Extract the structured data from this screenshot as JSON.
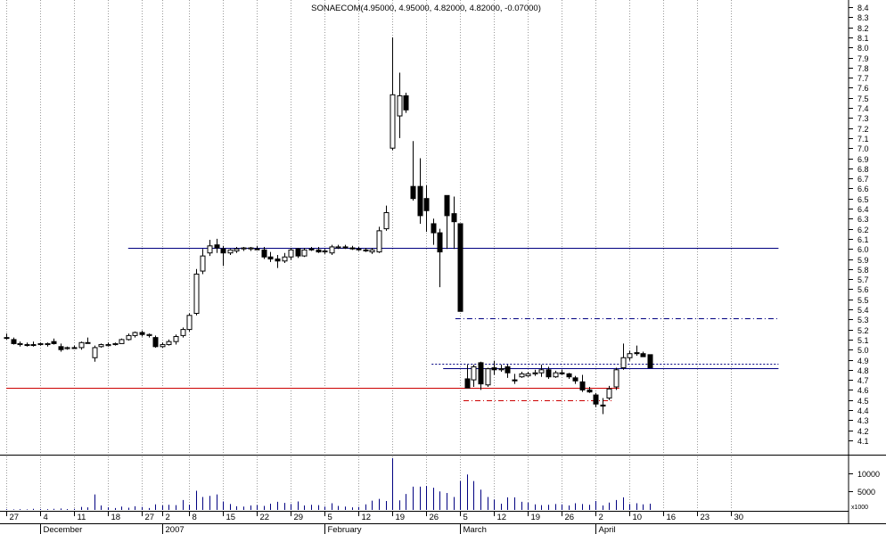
{
  "chart_data": {
    "type": "candlestick",
    "title": "SONAECOM(4.95000, 4.95000, 4.82000, 4.82000, -0.07000)",
    "ylim": [
      4.0,
      8.45
    ],
    "y_ticks": [
      "8.4",
      "8.3",
      "8.2",
      "8.1",
      "8.0",
      "7.9",
      "7.8",
      "7.7",
      "7.6",
      "7.5",
      "7.4",
      "7.3",
      "7.2",
      "7.1",
      "7.0",
      "6.9",
      "6.8",
      "6.7",
      "6.6",
      "6.5",
      "6.4",
      "6.3",
      "6.2",
      "6.1",
      "6.0",
      "5.9",
      "5.8",
      "5.7",
      "5.6",
      "5.5",
      "5.4",
      "5.3",
      "5.2",
      "5.1",
      "5.0",
      "4.9",
      "4.8",
      "4.7",
      "4.6",
      "4.5",
      "4.4",
      "4.3",
      "4.2",
      "4.1"
    ],
    "x_day_ticks": [
      {
        "label": "27",
        "i": 0
      },
      {
        "label": "4",
        "i": 5
      },
      {
        "label": "11",
        "i": 10
      },
      {
        "label": "18",
        "i": 15
      },
      {
        "label": "27",
        "i": 20
      },
      {
        "label": "2",
        "i": 23
      },
      {
        "label": "8",
        "i": 27
      },
      {
        "label": "15",
        "i": 32
      },
      {
        "label": "22",
        "i": 37
      },
      {
        "label": "29",
        "i": 42
      },
      {
        "label": "5",
        "i": 47
      },
      {
        "label": "12",
        "i": 52
      },
      {
        "label": "19",
        "i": 57
      },
      {
        "label": "26",
        "i": 62
      },
      {
        "label": "5",
        "i": 67
      },
      {
        "label": "12",
        "i": 72
      },
      {
        "label": "19",
        "i": 77
      },
      {
        "label": "26",
        "i": 82
      },
      {
        "label": "2",
        "i": 87
      },
      {
        "label": "10",
        "i": 92
      },
      {
        "label": "16",
        "i": 97
      },
      {
        "label": "23",
        "i": 102
      },
      {
        "label": "30",
        "i": 107
      }
    ],
    "x_month_labels": [
      {
        "label": "December",
        "i": 5
      },
      {
        "label": "2007",
        "i": 23
      },
      {
        "label": "February",
        "i": 47
      },
      {
        "label": "March",
        "i": 67
      },
      {
        "label": "April",
        "i": 87
      }
    ],
    "volume_ticks": [
      "10000",
      "5000"
    ],
    "volume_multiplier": "x1000",
    "vmax": 14000,
    "candles": [
      {
        "o": 5.12,
        "h": 5.16,
        "l": 5.1,
        "c": 5.12,
        "v": 200
      },
      {
        "o": 5.1,
        "h": 5.12,
        "l": 5.05,
        "c": 5.06,
        "v": 150
      },
      {
        "o": 5.05,
        "h": 5.08,
        "l": 5.03,
        "c": 5.06,
        "v": 200
      },
      {
        "o": 5.05,
        "h": 5.07,
        "l": 5.03,
        "c": 5.05,
        "v": 150
      },
      {
        "o": 5.05,
        "h": 5.08,
        "l": 5.03,
        "c": 5.05,
        "v": 300
      },
      {
        "o": 5.05,
        "h": 5.07,
        "l": 5.04,
        "c": 5.06,
        "v": 250
      },
      {
        "o": 5.05,
        "h": 5.07,
        "l": 5.03,
        "c": 5.06,
        "v": 200
      },
      {
        "o": 5.08,
        "h": 5.11,
        "l": 5.05,
        "c": 5.06,
        "v": 300
      },
      {
        "o": 5.03,
        "h": 5.06,
        "l": 4.98,
        "c": 5.0,
        "v": 400
      },
      {
        "o": 5.01,
        "h": 5.03,
        "l": 5.0,
        "c": 5.02,
        "v": 250
      },
      {
        "o": 5.02,
        "h": 5.04,
        "l": 5.01,
        "c": 5.02,
        "v": 300
      },
      {
        "o": 5.02,
        "h": 5.08,
        "l": 5.0,
        "c": 5.07,
        "v": 800
      },
      {
        "o": 5.07,
        "h": 5.12,
        "l": 5.06,
        "c": 5.07,
        "v": 700
      },
      {
        "o": 4.92,
        "h": 5.04,
        "l": 4.88,
        "c": 5.02,
        "v": 4200
      },
      {
        "o": 5.03,
        "h": 5.06,
        "l": 5.02,
        "c": 5.05,
        "v": 1200
      },
      {
        "o": 5.04,
        "h": 5.07,
        "l": 5.03,
        "c": 5.05,
        "v": 700
      },
      {
        "o": 5.05,
        "h": 5.07,
        "l": 5.04,
        "c": 5.06,
        "v": 500
      },
      {
        "o": 5.06,
        "h": 5.11,
        "l": 5.06,
        "c": 5.1,
        "v": 900
      },
      {
        "o": 5.1,
        "h": 5.16,
        "l": 5.09,
        "c": 5.14,
        "v": 600
      },
      {
        "o": 5.14,
        "h": 5.18,
        "l": 5.12,
        "c": 5.17,
        "v": 1000
      },
      {
        "o": 5.17,
        "h": 5.19,
        "l": 5.13,
        "c": 5.15,
        "v": 800
      },
      {
        "o": 5.14,
        "h": 5.16,
        "l": 5.12,
        "c": 5.15,
        "v": 500
      },
      {
        "o": 5.12,
        "h": 5.14,
        "l": 5.02,
        "c": 5.03,
        "v": 1500
      },
      {
        "o": 5.03,
        "h": 5.07,
        "l": 5.02,
        "c": 5.05,
        "v": 1200
      },
      {
        "o": 5.05,
        "h": 5.1,
        "l": 5.04,
        "c": 5.08,
        "v": 1400
      },
      {
        "o": 5.08,
        "h": 5.15,
        "l": 5.05,
        "c": 5.13,
        "v": 1300
      },
      {
        "o": 5.14,
        "h": 5.22,
        "l": 5.12,
        "c": 5.2,
        "v": 2700
      },
      {
        "o": 5.2,
        "h": 5.36,
        "l": 5.18,
        "c": 5.34,
        "v": 1400
      },
      {
        "o": 5.36,
        "h": 5.8,
        "l": 5.34,
        "c": 5.75,
        "v": 5200
      },
      {
        "o": 5.78,
        "h": 6.0,
        "l": 5.75,
        "c": 5.93,
        "v": 3500
      },
      {
        "o": 5.96,
        "h": 6.09,
        "l": 5.93,
        "c": 6.03,
        "v": 3800
      },
      {
        "o": 6.04,
        "h": 6.1,
        "l": 5.96,
        "c": 6.01,
        "v": 4200
      },
      {
        "o": 6.0,
        "h": 6.03,
        "l": 5.83,
        "c": 5.96,
        "v": 2300
      },
      {
        "o": 5.96,
        "h": 6.0,
        "l": 5.94,
        "c": 5.99,
        "v": 1600
      },
      {
        "o": 5.98,
        "h": 6.02,
        "l": 5.96,
        "c": 6.0,
        "v": 1000
      },
      {
        "o": 6.0,
        "h": 6.02,
        "l": 5.98,
        "c": 6.01,
        "v": 900
      },
      {
        "o": 6.0,
        "h": 6.02,
        "l": 5.98,
        "c": 6.01,
        "v": 1200
      },
      {
        "o": 6.0,
        "h": 6.03,
        "l": 5.99,
        "c": 6.0,
        "v": 1300
      },
      {
        "o": 5.99,
        "h": 6.02,
        "l": 5.9,
        "c": 5.92,
        "v": 1100
      },
      {
        "o": 5.92,
        "h": 5.97,
        "l": 5.87,
        "c": 5.9,
        "v": 1700
      },
      {
        "o": 5.9,
        "h": 5.94,
        "l": 5.81,
        "c": 5.88,
        "v": 2200
      },
      {
        "o": 5.88,
        "h": 5.96,
        "l": 5.86,
        "c": 5.92,
        "v": 1900
      },
      {
        "o": 5.92,
        "h": 6.01,
        "l": 5.89,
        "c": 5.99,
        "v": 1600
      },
      {
        "o": 6.0,
        "h": 6.01,
        "l": 5.91,
        "c": 5.93,
        "v": 2300
      },
      {
        "o": 5.93,
        "h": 6.01,
        "l": 5.92,
        "c": 5.99,
        "v": 1200
      },
      {
        "o": 6.0,
        "h": 6.02,
        "l": 5.98,
        "c": 5.99,
        "v": 1400
      },
      {
        "o": 5.99,
        "h": 6.02,
        "l": 5.96,
        "c": 5.97,
        "v": 1300
      },
      {
        "o": 5.97,
        "h": 6.0,
        "l": 5.95,
        "c": 5.98,
        "v": 900
      },
      {
        "o": 5.96,
        "h": 6.04,
        "l": 5.94,
        "c": 6.02,
        "v": 1800
      },
      {
        "o": 6.01,
        "h": 6.04,
        "l": 6.0,
        "c": 6.02,
        "v": 1100
      },
      {
        "o": 6.02,
        "h": 6.04,
        "l": 6.0,
        "c": 6.01,
        "v": 900
      },
      {
        "o": 6.01,
        "h": 6.03,
        "l": 5.99,
        "c": 6.0,
        "v": 700
      },
      {
        "o": 6.0,
        "h": 6.02,
        "l": 5.98,
        "c": 6.0,
        "v": 800
      },
      {
        "o": 5.99,
        "h": 6.01,
        "l": 5.97,
        "c": 5.98,
        "v": 1500
      },
      {
        "o": 5.97,
        "h": 6.01,
        "l": 5.95,
        "c": 5.99,
        "v": 2500
      },
      {
        "o": 5.97,
        "h": 6.22,
        "l": 5.96,
        "c": 6.18,
        "v": 3000
      },
      {
        "o": 6.2,
        "h": 6.43,
        "l": 6.18,
        "c": 6.36,
        "v": 2400
      },
      {
        "o": 7.0,
        "h": 8.1,
        "l": 6.98,
        "c": 7.53,
        "v": 14000
      },
      {
        "o": 7.32,
        "h": 7.75,
        "l": 7.1,
        "c": 7.52,
        "v": 2600
      },
      {
        "o": 7.52,
        "h": 7.55,
        "l": 7.35,
        "c": 7.38,
        "v": 4300
      },
      {
        "o": 6.62,
        "h": 7.07,
        "l": 6.48,
        "c": 6.5,
        "v": 6300
      },
      {
        "o": 6.62,
        "h": 6.9,
        "l": 6.25,
        "c": 6.33,
        "v": 6300
      },
      {
        "o": 6.5,
        "h": 6.63,
        "l": 6.17,
        "c": 6.38,
        "v": 6500
      },
      {
        "o": 6.25,
        "h": 6.3,
        "l": 6.04,
        "c": 6.16,
        "v": 6000
      },
      {
        "o": 6.16,
        "h": 6.2,
        "l": 5.62,
        "c": 5.97,
        "v": 5000
      },
      {
        "o": 6.53,
        "h": 6.53,
        "l": 6.0,
        "c": 6.33,
        "v": 4600
      },
      {
        "o": 6.35,
        "h": 6.52,
        "l": 6.0,
        "c": 6.27,
        "v": 3500
      },
      {
        "o": 6.25,
        "h": 6.25,
        "l": 5.38,
        "c": 5.38,
        "v": 7800
      },
      {
        "o": 4.71,
        "h": 4.85,
        "l": 4.63,
        "c": 4.62,
        "v": 9600
      },
      {
        "o": 4.7,
        "h": 4.85,
        "l": 4.63,
        "c": 4.83,
        "v": 7800
      },
      {
        "o": 4.87,
        "h": 4.88,
        "l": 4.6,
        "c": 4.66,
        "v": 5500
      },
      {
        "o": 4.65,
        "h": 4.82,
        "l": 4.63,
        "c": 4.81,
        "v": 3500
      },
      {
        "o": 4.82,
        "h": 4.89,
        "l": 4.75,
        "c": 4.8,
        "v": 2800
      },
      {
        "o": 4.8,
        "h": 4.85,
        "l": 4.78,
        "c": 4.81,
        "v": 1700
      },
      {
        "o": 4.83,
        "h": 4.85,
        "l": 4.72,
        "c": 4.77,
        "v": 3400
      },
      {
        "o": 4.7,
        "h": 4.76,
        "l": 4.66,
        "c": 4.69,
        "v": 3400
      },
      {
        "o": 4.73,
        "h": 4.78,
        "l": 4.72,
        "c": 4.76,
        "v": 2200
      },
      {
        "o": 4.74,
        "h": 4.78,
        "l": 4.73,
        "c": 4.76,
        "v": 2000
      },
      {
        "o": 4.76,
        "h": 4.8,
        "l": 4.74,
        "c": 4.77,
        "v": 1500
      },
      {
        "o": 4.77,
        "h": 4.85,
        "l": 4.73,
        "c": 4.8,
        "v": 1300
      },
      {
        "o": 4.8,
        "h": 4.83,
        "l": 4.71,
        "c": 4.73,
        "v": 1400
      },
      {
        "o": 4.73,
        "h": 4.79,
        "l": 4.72,
        "c": 4.77,
        "v": 1600
      },
      {
        "o": 4.77,
        "h": 4.8,
        "l": 4.75,
        "c": 4.76,
        "v": 1500
      },
      {
        "o": 4.76,
        "h": 4.77,
        "l": 4.71,
        "c": 4.73,
        "v": 1200
      },
      {
        "o": 4.72,
        "h": 4.74,
        "l": 4.66,
        "c": 4.69,
        "v": 1800
      },
      {
        "o": 4.68,
        "h": 4.75,
        "l": 4.58,
        "c": 4.6,
        "v": 1600
      },
      {
        "o": 4.6,
        "h": 4.63,
        "l": 4.57,
        "c": 4.58,
        "v": 1400
      },
      {
        "o": 4.55,
        "h": 4.57,
        "l": 4.43,
        "c": 4.46,
        "v": 2400
      },
      {
        "o": 4.45,
        "h": 4.52,
        "l": 4.36,
        "c": 4.44,
        "v": 1200
      },
      {
        "o": 4.52,
        "h": 4.64,
        "l": 4.5,
        "c": 4.61,
        "v": 2000
      },
      {
        "o": 4.63,
        "h": 4.82,
        "l": 4.6,
        "c": 4.8,
        "v": 2700
      },
      {
        "o": 4.82,
        "h": 5.06,
        "l": 4.8,
        "c": 4.92,
        "v": 3400
      },
      {
        "o": 4.92,
        "h": 4.99,
        "l": 4.89,
        "c": 4.96,
        "v": 1600
      },
      {
        "o": 4.97,
        "h": 5.04,
        "l": 4.94,
        "c": 4.96,
        "v": 1800
      },
      {
        "o": 4.96,
        "h": 4.98,
        "l": 4.93,
        "c": 4.93,
        "v": 1500
      },
      {
        "o": 4.95,
        "h": 4.95,
        "l": 4.82,
        "c": 4.82,
        "v": 1700
      }
    ],
    "lines": [
      {
        "style": "solid",
        "color": "#000080",
        "y": 6.01,
        "x0": 18,
        "x1": 114
      },
      {
        "style": "dashdot",
        "color": "#000080",
        "y": 5.31,
        "x0": 66.3,
        "x1": 114
      },
      {
        "style": "dotted",
        "color": "#000080",
        "y": 4.86,
        "x0": 62.8,
        "x1": 114
      },
      {
        "style": "solid",
        "color": "#000080",
        "y": 4.82,
        "x0": 64.5,
        "x1": 114
      },
      {
        "style": "solid",
        "color": "#cc0000",
        "y": 4.62,
        "x0": 0,
        "x1": 90.5
      },
      {
        "style": "dashdot",
        "color": "#cc0000",
        "y": 4.5,
        "x0": 67.5,
        "x1": 89.5
      }
    ]
  }
}
